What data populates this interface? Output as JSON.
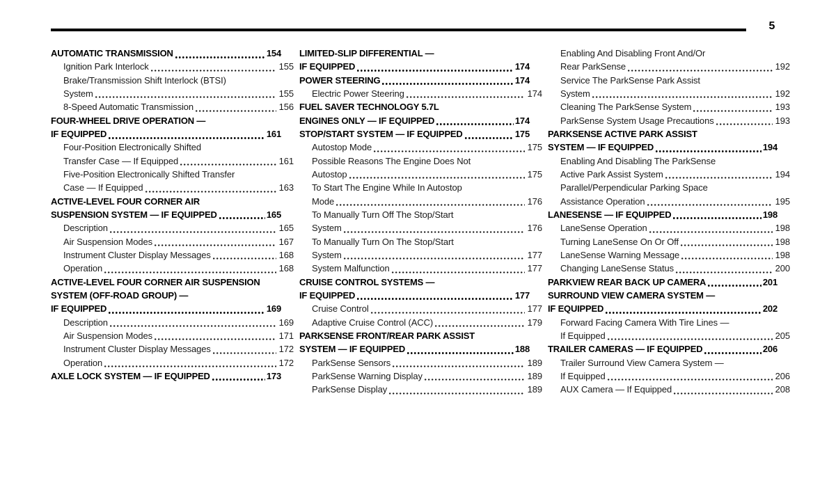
{
  "page": {
    "number": "5"
  },
  "colors": {
    "text": "#1a1a1a",
    "heading": "#000000",
    "rule": "#000000",
    "background": "#ffffff"
  },
  "toc": {
    "columns": [
      {
        "entries": [
          {
            "level": "section",
            "lines": [
              "AUTOMATIC TRANSMISSION"
            ],
            "page": "154"
          },
          {
            "level": "sub",
            "lines": [
              "Ignition Park Interlock"
            ],
            "page": "155"
          },
          {
            "level": "sub",
            "lines": [
              "Brake/Transmission Shift Interlock (BTSI)",
              "System"
            ],
            "page": "155"
          },
          {
            "level": "sub",
            "lines": [
              "8-Speed Automatic Transmission"
            ],
            "page": "156"
          },
          {
            "level": "section",
            "lines": [
              "FOUR-WHEEL DRIVE OPERATION —",
              "IF EQUIPPED"
            ],
            "page": "161"
          },
          {
            "level": "sub",
            "lines": [
              "Four-Position Electronically Shifted",
              "Transfer Case — If Equipped"
            ],
            "page": "161"
          },
          {
            "level": "sub",
            "lines": [
              "Five-Position Electronically Shifted Transfer",
              "Case — If Equipped"
            ],
            "page": "163"
          },
          {
            "level": "section",
            "lines": [
              "ACTIVE-LEVEL FOUR CORNER AIR",
              "SUSPENSION SYSTEM — IF EQUIPPED"
            ],
            "page": "165"
          },
          {
            "level": "sub",
            "lines": [
              "Description"
            ],
            "page": "165"
          },
          {
            "level": "sub",
            "lines": [
              "Air Suspension Modes"
            ],
            "page": "167"
          },
          {
            "level": "sub",
            "lines": [
              "Instrument Cluster Display Messages"
            ],
            "page": "168"
          },
          {
            "level": "sub",
            "lines": [
              "Operation"
            ],
            "page": "168"
          },
          {
            "level": "section",
            "lines": [
              "ACTIVE-LEVEL FOUR CORNER AIR SUSPENSION",
              "SYSTEM (OFF-ROAD GROUP) —",
              "IF EQUIPPED"
            ],
            "page": "169"
          },
          {
            "level": "sub",
            "lines": [
              "Description"
            ],
            "page": "169"
          },
          {
            "level": "sub",
            "lines": [
              "Air Suspension Modes"
            ],
            "page": "171"
          },
          {
            "level": "sub",
            "lines": [
              "Instrument Cluster Display Messages"
            ],
            "page": "172"
          },
          {
            "level": "sub",
            "lines": [
              "Operation"
            ],
            "page": "172"
          },
          {
            "level": "section",
            "lines": [
              "AXLE LOCK SYSTEM — IF EQUIPPED"
            ],
            "page": "173"
          }
        ]
      },
      {
        "entries": [
          {
            "level": "section",
            "lines": [
              "LIMITED-SLIP DIFFERENTIAL —",
              "IF EQUIPPED"
            ],
            "page": "174"
          },
          {
            "level": "section",
            "lines": [
              "POWER STEERING"
            ],
            "page": "174"
          },
          {
            "level": "sub",
            "lines": [
              "Electric Power Steering"
            ],
            "page": "174"
          },
          {
            "level": "section",
            "lines": [
              "FUEL SAVER TECHNOLOGY 5.7L",
              "ENGINES ONLY — IF EQUIPPED"
            ],
            "page": "174"
          },
          {
            "level": "section",
            "lines": [
              "STOP/START SYSTEM — IF EQUIPPED"
            ],
            "page": "175"
          },
          {
            "level": "sub",
            "lines": [
              "Autostop Mode"
            ],
            "page": "175"
          },
          {
            "level": "sub",
            "lines": [
              "Possible Reasons The Engine Does Not",
              "Autostop"
            ],
            "page": "175"
          },
          {
            "level": "sub",
            "lines": [
              "To Start The Engine While In Autostop",
              "Mode"
            ],
            "page": "176"
          },
          {
            "level": "sub",
            "lines": [
              "To Manually Turn Off The Stop/Start",
              "System"
            ],
            "page": "176"
          },
          {
            "level": "sub",
            "lines": [
              "To Manually Turn On The Stop/Start",
              "System"
            ],
            "page": "177"
          },
          {
            "level": "sub",
            "lines": [
              "System Malfunction"
            ],
            "page": "177"
          },
          {
            "level": "section",
            "lines": [
              "CRUISE CONTROL SYSTEMS —",
              "IF EQUIPPED"
            ],
            "page": "177"
          },
          {
            "level": "sub",
            "lines": [
              "Cruise Control"
            ],
            "page": "177"
          },
          {
            "level": "sub",
            "lines": [
              "Adaptive Cruise Control (ACC)"
            ],
            "page": "179"
          },
          {
            "level": "section",
            "lines": [
              "PARKSENSE FRONT/REAR PARK ASSIST",
              "SYSTEM — IF EQUIPPED"
            ],
            "page": "188"
          },
          {
            "level": "sub",
            "lines": [
              "ParkSense Sensors"
            ],
            "page": "189"
          },
          {
            "level": "sub",
            "lines": [
              "ParkSense Warning Display"
            ],
            "page": "189"
          },
          {
            "level": "sub",
            "lines": [
              "ParkSense Display"
            ],
            "page": "189"
          }
        ]
      },
      {
        "entries": [
          {
            "level": "sub",
            "lines": [
              "Enabling And Disabling Front And/Or",
              "Rear ParkSense"
            ],
            "page": "192"
          },
          {
            "level": "sub",
            "lines": [
              "Service The ParkSense Park Assist",
              "System"
            ],
            "page": "192"
          },
          {
            "level": "sub",
            "lines": [
              "Cleaning The ParkSense System"
            ],
            "page": "193"
          },
          {
            "level": "sub",
            "lines": [
              "ParkSense System Usage Precautions"
            ],
            "page": "193"
          },
          {
            "level": "section",
            "lines": [
              "PARKSENSE ACTIVE PARK ASSIST",
              "SYSTEM — IF EQUIPPED"
            ],
            "page": "194"
          },
          {
            "level": "sub",
            "lines": [
              "Enabling And Disabling The ParkSense",
              "Active Park Assist System"
            ],
            "page": "194"
          },
          {
            "level": "sub",
            "lines": [
              "Parallel/Perpendicular Parking Space",
              "Assistance Operation"
            ],
            "page": "195"
          },
          {
            "level": "section",
            "lines": [
              "LANESENSE — IF EQUIPPED"
            ],
            "page": "198"
          },
          {
            "level": "sub",
            "lines": [
              "LaneSense Operation"
            ],
            "page": "198"
          },
          {
            "level": "sub",
            "lines": [
              "Turning LaneSense On Or Off"
            ],
            "page": "198"
          },
          {
            "level": "sub",
            "lines": [
              "LaneSense Warning Message"
            ],
            "page": "198"
          },
          {
            "level": "sub",
            "lines": [
              "Changing LaneSense Status"
            ],
            "page": "200"
          },
          {
            "level": "section",
            "lines": [
              "PARKVIEW REAR BACK UP CAMERA"
            ],
            "page": "201"
          },
          {
            "level": "section",
            "lines": [
              "SURROUND VIEW CAMERA SYSTEM —",
              "IF EQUIPPED"
            ],
            "page": "202"
          },
          {
            "level": "sub",
            "lines": [
              "Forward Facing Camera With Tire Lines —",
              "If Equipped"
            ],
            "page": "205"
          },
          {
            "level": "section",
            "lines": [
              "TRAILER CAMERAS — IF EQUIPPED"
            ],
            "page": "206"
          },
          {
            "level": "sub",
            "lines": [
              "Trailer Surround View Camera System —",
              "If Equipped"
            ],
            "page": "206"
          },
          {
            "level": "sub",
            "lines": [
              "AUX Camera — If Equipped"
            ],
            "page": "208"
          }
        ]
      }
    ]
  }
}
